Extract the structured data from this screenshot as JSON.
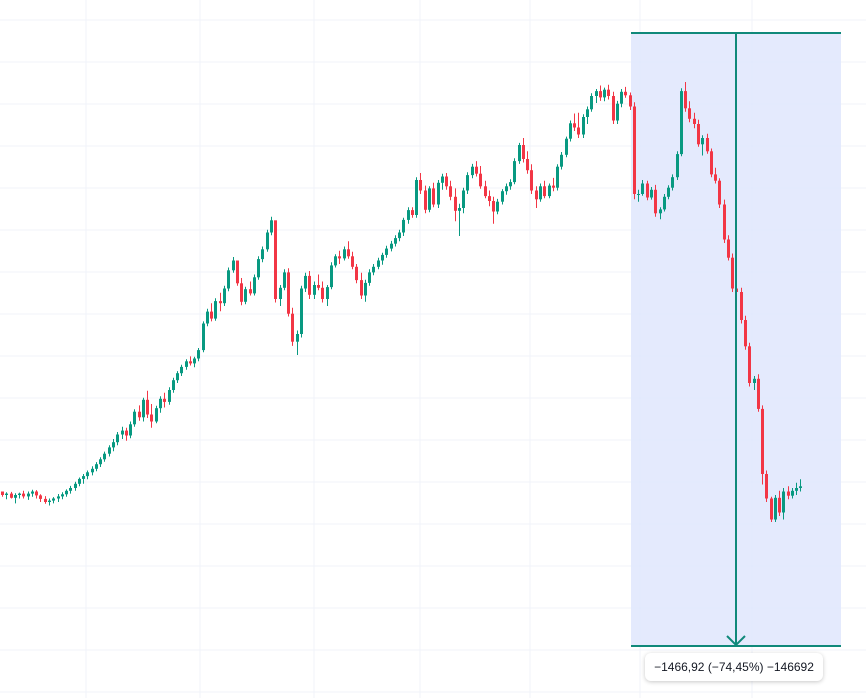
{
  "colors": {
    "background": "#ffffff",
    "grid": "#f0f3fa",
    "up": "#089981",
    "down": "#f23645",
    "measure_fill": "#dfe6fd",
    "measure_line": "#10897a",
    "label_text": "#131722"
  },
  "measurement": {
    "label": "−1466,92 (−74,45%) −146692",
    "direction": "down"
  },
  "chart_data": {
    "type": "candlestick",
    "grid": true,
    "legend": "none",
    "ylim": [
      0,
      2140
    ],
    "measure_range": {
      "start_index": 147,
      "end_index": 195,
      "high": 1970,
      "low": 503
    },
    "candles": [
      [
        590,
        590,
        575,
        580
      ],
      [
        580,
        588,
        568,
        584
      ],
      [
        584,
        589,
        570,
        572
      ],
      [
        572,
        585,
        556,
        580
      ],
      [
        580,
        587,
        570,
        584
      ],
      [
        584,
        592,
        570,
        576
      ],
      [
        576,
        590,
        566,
        584
      ],
      [
        584,
        595,
        575,
        590
      ],
      [
        590,
        594,
        570,
        579
      ],
      [
        579,
        582,
        560,
        569
      ],
      [
        569,
        577,
        555,
        560
      ],
      [
        560,
        570,
        550,
        564
      ],
      [
        564,
        574,
        556,
        570
      ],
      [
        570,
        583,
        560,
        576
      ],
      [
        576,
        588,
        568,
        582
      ],
      [
        582,
        596,
        575,
        592
      ],
      [
        592,
        606,
        584,
        600
      ],
      [
        600,
        618,
        592,
        612
      ],
      [
        612,
        630,
        605,
        626
      ],
      [
        626,
        640,
        612,
        634
      ],
      [
        634,
        650,
        625,
        645
      ],
      [
        645,
        662,
        636,
        655
      ],
      [
        655,
        674,
        648,
        668
      ],
      [
        668,
        688,
        660,
        682
      ],
      [
        682,
        704,
        675,
        698
      ],
      [
        698,
        722,
        690,
        716
      ],
      [
        716,
        740,
        705,
        731
      ],
      [
        731,
        760,
        722,
        753
      ],
      [
        753,
        775,
        740,
        764
      ],
      [
        764,
        772,
        735,
        750
      ],
      [
        750,
        790,
        742,
        782
      ],
      [
        782,
        825,
        775,
        818
      ],
      [
        818,
        836,
        792,
        802
      ],
      [
        802,
        858,
        790,
        852
      ],
      [
        852,
        878,
        800,
        810
      ],
      [
        810,
        840,
        772,
        790
      ],
      [
        790,
        835,
        785,
        828
      ],
      [
        828,
        862,
        815,
        855
      ],
      [
        855,
        872,
        830,
        846
      ],
      [
        846,
        888,
        838,
        880
      ],
      [
        880,
        915,
        872,
        908
      ],
      [
        908,
        934,
        900,
        928
      ],
      [
        928,
        952,
        920,
        946
      ],
      [
        946,
        968,
        938,
        962
      ],
      [
        962,
        976,
        950,
        956
      ],
      [
        956,
        975,
        945,
        970
      ],
      [
        970,
        1000,
        962,
        994
      ],
      [
        994,
        1076,
        988,
        1070
      ],
      [
        1070,
        1112,
        1062,
        1104
      ],
      [
        1104,
        1128,
        1076,
        1084
      ],
      [
        1084,
        1142,
        1078,
        1134
      ],
      [
        1134,
        1158,
        1105,
        1128
      ],
      [
        1128,
        1178,
        1120,
        1170
      ],
      [
        1170,
        1230,
        1162,
        1222
      ],
      [
        1222,
        1260,
        1215,
        1250
      ],
      [
        1250,
        1244,
        1178,
        1185
      ],
      [
        1185,
        1200,
        1122,
        1132
      ],
      [
        1132,
        1175,
        1125,
        1168
      ],
      [
        1168,
        1190,
        1150,
        1156
      ],
      [
        1156,
        1210,
        1150,
        1202
      ],
      [
        1202,
        1262,
        1195,
        1254
      ],
      [
        1254,
        1290,
        1245,
        1282
      ],
      [
        1282,
        1338,
        1275,
        1330
      ],
      [
        1330,
        1375,
        1322,
        1365
      ],
      [
        1365,
        1350,
        1130,
        1140
      ],
      [
        1140,
        1180,
        1120,
        1172
      ],
      [
        1172,
        1225,
        1165,
        1216
      ],
      [
        1216,
        1228,
        1090,
        1098
      ],
      [
        1098,
        1115,
        1006,
        1018
      ],
      [
        1018,
        1050,
        980,
        1040
      ],
      [
        1040,
        1178,
        1030,
        1170
      ],
      [
        1170,
        1215,
        1160,
        1206
      ],
      [
        1206,
        1220,
        1140,
        1152
      ],
      [
        1152,
        1190,
        1140,
        1180
      ],
      [
        1180,
        1210,
        1165,
        1172
      ],
      [
        1172,
        1190,
        1130,
        1140
      ],
      [
        1140,
        1180,
        1120,
        1174
      ],
      [
        1174,
        1245,
        1168,
        1236
      ],
      [
        1236,
        1268,
        1230,
        1262
      ],
      [
        1262,
        1278,
        1240,
        1256
      ],
      [
        1256,
        1290,
        1250,
        1282
      ],
      [
        1282,
        1305,
        1255,
        1262
      ],
      [
        1262,
        1275,
        1225,
        1232
      ],
      [
        1232,
        1240,
        1185,
        1194
      ],
      [
        1194,
        1215,
        1140,
        1150
      ],
      [
        1150,
        1195,
        1132,
        1186
      ],
      [
        1186,
        1225,
        1178,
        1216
      ],
      [
        1216,
        1240,
        1208,
        1232
      ],
      [
        1232,
        1258,
        1225,
        1250
      ],
      [
        1250,
        1272,
        1238,
        1266
      ],
      [
        1266,
        1292,
        1258,
        1284
      ],
      [
        1284,
        1306,
        1276,
        1298
      ],
      [
        1298,
        1322,
        1290,
        1314
      ],
      [
        1314,
        1338,
        1305,
        1330
      ],
      [
        1330,
        1372,
        1320,
        1366
      ],
      [
        1366,
        1402,
        1355,
        1394
      ],
      [
        1394,
        1402,
        1372,
        1380
      ],
      [
        1380,
        1488,
        1372,
        1480
      ],
      [
        1480,
        1500,
        1440,
        1450
      ],
      [
        1450,
        1464,
        1385,
        1395
      ],
      [
        1395,
        1462,
        1388,
        1456
      ],
      [
        1456,
        1472,
        1402,
        1410
      ],
      [
        1410,
        1480,
        1400,
        1472
      ],
      [
        1472,
        1498,
        1452,
        1490
      ],
      [
        1490,
        1500,
        1452,
        1462
      ],
      [
        1462,
        1478,
        1422,
        1432
      ],
      [
        1432,
        1456,
        1362,
        1392
      ],
      [
        1392,
        1412,
        1320,
        1400
      ],
      [
        1400,
        1458,
        1385,
        1450
      ],
      [
        1450,
        1502,
        1440,
        1494
      ],
      [
        1494,
        1526,
        1485,
        1518
      ],
      [
        1518,
        1534,
        1490,
        1498
      ],
      [
        1498,
        1520,
        1455,
        1462
      ],
      [
        1462,
        1478,
        1428,
        1434
      ],
      [
        1434,
        1450,
        1405,
        1420
      ],
      [
        1420,
        1432,
        1355,
        1390
      ],
      [
        1390,
        1426,
        1382,
        1418
      ],
      [
        1418,
        1454,
        1410,
        1448
      ],
      [
        1448,
        1470,
        1438,
        1462
      ],
      [
        1462,
        1482,
        1452,
        1474
      ],
      [
        1474,
        1542,
        1468,
        1534
      ],
      [
        1534,
        1586,
        1526,
        1580
      ],
      [
        1580,
        1600,
        1530,
        1540
      ],
      [
        1540,
        1562,
        1498,
        1508
      ],
      [
        1508,
        1525,
        1440,
        1450
      ],
      [
        1450,
        1462,
        1400,
        1425
      ],
      [
        1425,
        1470,
        1418,
        1462
      ],
      [
        1462,
        1478,
        1428,
        1434
      ],
      [
        1434,
        1470,
        1428,
        1464
      ],
      [
        1464,
        1486,
        1448,
        1458
      ],
      [
        1458,
        1525,
        1450,
        1518
      ],
      [
        1518,
        1560,
        1510,
        1552
      ],
      [
        1552,
        1604,
        1545,
        1598
      ],
      [
        1598,
        1650,
        1590,
        1642
      ],
      [
        1642,
        1670,
        1620,
        1630
      ],
      [
        1630,
        1672,
        1600,
        1610
      ],
      [
        1610,
        1668,
        1600,
        1660
      ],
      [
        1660,
        1690,
        1640,
        1682
      ],
      [
        1682,
        1728,
        1675,
        1720
      ],
      [
        1720,
        1740,
        1700,
        1734
      ],
      [
        1734,
        1750,
        1706,
        1716
      ],
      [
        1716,
        1744,
        1705,
        1738
      ],
      [
        1738,
        1752,
        1710,
        1720
      ],
      [
        1720,
        1732,
        1640,
        1650
      ],
      [
        1650,
        1706,
        1640,
        1698
      ],
      [
        1698,
        1740,
        1688,
        1732
      ],
      [
        1732,
        1746,
        1715,
        1722
      ],
      [
        1722,
        1730,
        1680,
        1690
      ],
      [
        1690,
        1702,
        1425,
        1440
      ],
      [
        1440,
        1452,
        1418,
        1440
      ],
      [
        1440,
        1480,
        1435,
        1470
      ],
      [
        1470,
        1478,
        1422,
        1430
      ],
      [
        1430,
        1460,
        1424,
        1452
      ],
      [
        1452,
        1466,
        1375,
        1385
      ],
      [
        1385,
        1402,
        1368,
        1396
      ],
      [
        1396,
        1440,
        1390,
        1432
      ],
      [
        1432,
        1465,
        1425,
        1458
      ],
      [
        1458,
        1496,
        1450,
        1488
      ],
      [
        1488,
        1562,
        1480,
        1554
      ],
      [
        1554,
        1742,
        1548,
        1734
      ],
      [
        1734,
        1760,
        1675,
        1685
      ],
      [
        1685,
        1705,
        1645,
        1655
      ],
      [
        1655,
        1672,
        1628,
        1640
      ],
      [
        1640,
        1652,
        1575,
        1582
      ],
      [
        1582,
        1608,
        1550,
        1600
      ],
      [
        1600,
        1612,
        1555,
        1562
      ],
      [
        1562,
        1570,
        1488,
        1496
      ],
      [
        1496,
        1515,
        1470,
        1478
      ],
      [
        1478,
        1485,
        1400,
        1410
      ],
      [
        1410,
        1424,
        1300,
        1310
      ],
      [
        1310,
        1322,
        1250,
        1258
      ],
      [
        1258,
        1270,
        1160,
        1170
      ],
      [
        1170,
        1188,
        1150,
        1160
      ],
      [
        1160,
        1172,
        1070,
        1080
      ],
      [
        1080,
        1092,
        995,
        1005
      ],
      [
        1005,
        1015,
        890,
        900
      ],
      [
        900,
        920,
        880,
        912
      ],
      [
        912,
        925,
        818,
        826
      ],
      [
        826,
        836,
        610,
        640
      ],
      [
        640,
        650,
        560,
        570
      ],
      [
        570,
        575,
        503,
        510
      ],
      [
        510,
        580,
        503,
        572
      ],
      [
        572,
        592,
        520,
        530
      ],
      [
        530,
        600,
        510,
        590
      ],
      [
        590,
        605,
        568,
        578
      ],
      [
        578,
        600,
        570,
        592
      ],
      [
        592,
        615,
        580,
        600
      ],
      [
        600,
        625,
        590,
        605
      ]
    ]
  }
}
